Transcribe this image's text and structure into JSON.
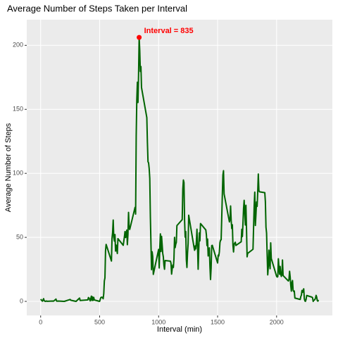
{
  "chart_data": {
    "type": "line",
    "title": "Average Number of Steps Taken per Interval",
    "x_label": "Interval (min)",
    "y_label": "Average Number of Steps",
    "x": [
      0,
      15,
      25,
      30,
      40,
      50,
      55,
      100,
      110,
      130,
      135,
      150,
      200,
      250,
      255,
      300,
      330,
      335,
      400,
      405,
      410,
      420,
      430,
      435,
      440,
      445,
      450,
      455,
      500,
      505,
      510,
      520,
      530,
      535,
      540,
      545,
      550,
      555,
      600,
      605,
      610,
      615,
      620,
      625,
      630,
      635,
      640,
      650,
      655,
      700,
      710,
      715,
      720,
      730,
      735,
      740,
      745,
      750,
      755,
      800,
      805,
      810,
      815,
      820,
      825,
      830,
      835,
      840,
      845,
      850,
      855,
      900,
      905,
      910,
      915,
      920,
      925,
      930,
      935,
      940,
      945,
      950,
      955,
      1000,
      1005,
      1010,
      1015,
      1020,
      1025,
      1030,
      1035,
      1040,
      1045,
      1050,
      1055,
      1100,
      1105,
      1110,
      1115,
      1120,
      1125,
      1130,
      1135,
      1140,
      1145,
      1150,
      1155,
      1200,
      1205,
      1210,
      1215,
      1220,
      1225,
      1230,
      1235,
      1240,
      1245,
      1250,
      1255,
      1300,
      1305,
      1310,
      1315,
      1320,
      1325,
      1330,
      1335,
      1340,
      1345,
      1350,
      1355,
      1400,
      1405,
      1410,
      1415,
      1420,
      1425,
      1430,
      1435,
      1440,
      1445,
      1450,
      1455,
      1500,
      1505,
      1510,
      1515,
      1520,
      1525,
      1530,
      1535,
      1540,
      1545,
      1550,
      1555,
      1600,
      1605,
      1610,
      1615,
      1620,
      1625,
      1630,
      1635,
      1640,
      1645,
      1650,
      1655,
      1700,
      1705,
      1710,
      1715,
      1720,
      1725,
      1730,
      1735,
      1740,
      1745,
      1750,
      1755,
      1800,
      1805,
      1810,
      1815,
      1820,
      1825,
      1830,
      1835,
      1840,
      1845,
      1850,
      1855,
      1900,
      1905,
      1910,
      1915,
      1920,
      1925,
      1930,
      1935,
      1940,
      1945,
      1950,
      1955,
      2000,
      2005,
      2010,
      2015,
      2020,
      2025,
      2030,
      2035,
      2040,
      2045,
      2050,
      2055,
      2100,
      2105,
      2110,
      2115,
      2120,
      2125,
      2130,
      2135,
      2140,
      2145,
      2150,
      2155,
      2200,
      2205,
      2210,
      2215,
      2220,
      2225,
      2230,
      2235,
      2240,
      2245,
      2250,
      2255,
      2300,
      2305,
      2310,
      2315,
      2320,
      2325,
      2330,
      2335,
      2340,
      2345,
      2350,
      2355
    ],
    "series": [
      {
        "name": "steps",
        "color": "#006400",
        "values": [
          1.7,
          0.2,
          2.1,
          0.5,
          0,
          0.3,
          0.1,
          0.3,
          0.2,
          1.8,
          0.2,
          0.3,
          0,
          1.5,
          0.9,
          0,
          2.6,
          0.7,
          1.2,
          3,
          2.6,
          0.4,
          4.1,
          0.7,
          3.5,
          0.8,
          3.1,
          1.1,
          0,
          1.6,
          3,
          3.3,
          2.1,
          6.1,
          16,
          18.3,
          39.5,
          44.5,
          31.5,
          49.3,
          53.8,
          63.5,
          50,
          47.1,
          52.2,
          39.3,
          44,
          37.4,
          49,
          43.8,
          50.5,
          54.5,
          49.9,
          55.7,
          44.3,
          52.3,
          69.5,
          57.8,
          56.2,
          73.4,
          68.2,
          129.4,
          157.5,
          171.2,
          155.4,
          177.3,
          206.2,
          195.9,
          179.6,
          183.4,
          167,
          143.5,
          124,
          109.1,
          108.1,
          103.7,
          96,
          66.2,
          45.2,
          24.8,
          38.8,
          35,
          21.1,
          40.6,
          26.1,
          42.4,
          52.7,
          38.9,
          50.8,
          44.3,
          37.4,
          34.7,
          28.3,
          25.1,
          31.9,
          31.4,
          29.7,
          21.3,
          25.5,
          28.4,
          26.5,
          33.4,
          50,
          42,
          44.6,
          46,
          59.2,
          63.9,
          87.7,
          94.8,
          92.8,
          63.4,
          50.2,
          54.5,
          32.4,
          26.5,
          37.7,
          45.1,
          67.3,
          42.3,
          39.9,
          43.3,
          41,
          46.2,
          56.4,
          42.8,
          25.1,
          39.9,
          53.5,
          47.3,
          60.8,
          55.8,
          52,
          43.6,
          48.7,
          35.5,
          37.5,
          41.8,
          27.5,
          17.1,
          26.1,
          43.6,
          43.8,
          30,
          36.1,
          35.5,
          38.8,
          46,
          47.8,
          48.1,
          65.3,
          82.9,
          98.7,
          102.1,
          84,
          62.1,
          64.1,
          74.5,
          63.2,
          56.9,
          59.8,
          43.9,
          38.6,
          44.7,
          45.5,
          46.2,
          43.7,
          46.6,
          56.3,
          50.7,
          61.2,
          72.7,
          78.9,
          68.9,
          59.7,
          75.1,
          56.5,
          34.8,
          37.5,
          40.7,
          58,
          74.7,
          85.3,
          59.3,
          67.8,
          77.7,
          74.2,
          85.3,
          99.5,
          86.6,
          85.6,
          84.9,
          77.8,
          58,
          53.4,
          36.3,
          20.7,
          27.4,
          40,
          30.2,
          25.5,
          45.7,
          33.5,
          19.6,
          19,
          19.3,
          33.3,
          26.8,
          21.2,
          27.3,
          21.3,
          19.5,
          21.3,
          32.3,
          20.2,
          15.9,
          17.2,
          23.5,
          19.2,
          12.5,
          8,
          14.7,
          16.3,
          8.7,
          7.8,
          8.1,
          2.6,
          1.5,
          3.7,
          4.8,
          8.5,
          7.1,
          8.7,
          9.8,
          2.2,
          0.3,
          0.1,
          1.6,
          4.6,
          3.3,
          2.8,
          0,
          0.8,
          1,
          1.6,
          2.6,
          4.7,
          3.3,
          0.6,
          0.2,
          1.1
        ]
      }
    ],
    "highlight": {
      "x": 835,
      "y": 206.2,
      "label": "Interval =  835",
      "color": "#ff0000"
    },
    "xlim": [
      -117.75,
      2472.75
    ],
    "ylim": [
      -11,
      220
    ],
    "xticks": [
      0,
      500,
      1000,
      1500,
      2000
    ],
    "yticks": [
      0,
      50,
      100,
      150,
      200
    ],
    "grid": true
  }
}
